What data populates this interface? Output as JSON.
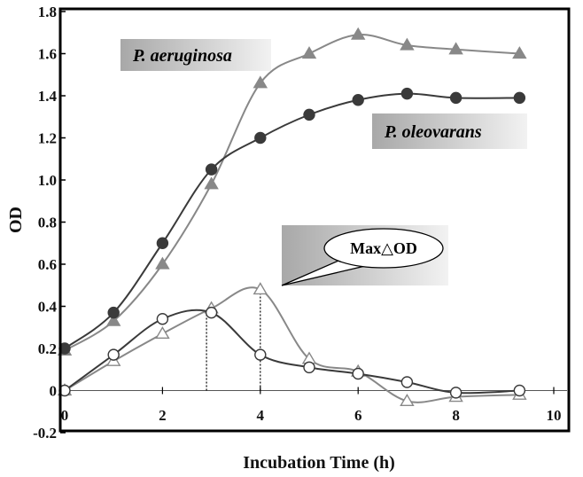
{
  "chart_data": {
    "type": "line",
    "title": "",
    "xlabel": "Incubation Time (h)",
    "ylabel": "OD",
    "xlim": [
      0,
      10
    ],
    "ylim": [
      -0.2,
      1.8
    ],
    "x_ticks": [
      0,
      2,
      4,
      6,
      8,
      10
    ],
    "x_tick_labels": [
      "0",
      "2",
      "4",
      "6",
      "8",
      "10"
    ],
    "y_ticks": [
      -0.2,
      0,
      0.2,
      0.4,
      0.6,
      0.8,
      1.0,
      1.2,
      1.4,
      1.6,
      1.8
    ],
    "y_tick_labels": [
      "-0.2",
      "0",
      "0.2",
      "0.4",
      "0.6",
      "0.8",
      "1.0",
      "1.2",
      "1.4",
      "1.6",
      "1.8"
    ],
    "grid": false,
    "series": [
      {
        "label_ref": "labels.aeruginosa",
        "marker": "triangle-filled",
        "color": "#888888",
        "x": [
          0,
          1,
          2,
          3,
          4,
          5,
          6,
          7,
          8,
          9.3
        ],
        "y": [
          0.19,
          0.33,
          0.6,
          0.98,
          1.46,
          1.6,
          1.69,
          1.64,
          1.62,
          1.6
        ]
      },
      {
        "label_ref": "labels.oleovarans",
        "marker": "circle-filled",
        "color": "#3a3a3a",
        "x": [
          0,
          1,
          2,
          3,
          4,
          5,
          6,
          7,
          8,
          9.3
        ],
        "y": [
          0.2,
          0.37,
          0.7,
          1.05,
          1.2,
          1.31,
          1.38,
          1.41,
          1.39,
          1.39
        ]
      },
      {
        "marker": "triangle-open",
        "color": "#888888",
        "x": [
          0,
          1,
          2,
          3,
          4,
          5,
          6,
          7,
          8,
          9.3
        ],
        "y": [
          0.0,
          0.14,
          0.27,
          0.39,
          0.48,
          0.15,
          0.09,
          -0.05,
          -0.03,
          -0.02
        ]
      },
      {
        "marker": "circle-open",
        "color": "#3a3a3a",
        "x": [
          0,
          1,
          2,
          3,
          4,
          5,
          6,
          7,
          8,
          9.3
        ],
        "y": [
          0.0,
          0.17,
          0.34,
          0.37,
          0.17,
          0.11,
          0.08,
          0.04,
          -0.01,
          0.0
        ]
      }
    ],
    "reference_lines": [
      {
        "x": 2.9,
        "y_from": 0.0,
        "y_to": 0.37,
        "style": "dotted"
      },
      {
        "x": 4.0,
        "y_from": 0.0,
        "y_to": 0.48,
        "style": "dotted"
      }
    ]
  },
  "labels": {
    "aeruginosa": "P. aeruginosa",
    "oleovarans": "P. oleovarans",
    "callout": "Max△OD"
  },
  "colors": {
    "frame": "#000000",
    "label_box_dark": "#a8a8a8",
    "label_box_light": "#f2f2f2"
  }
}
